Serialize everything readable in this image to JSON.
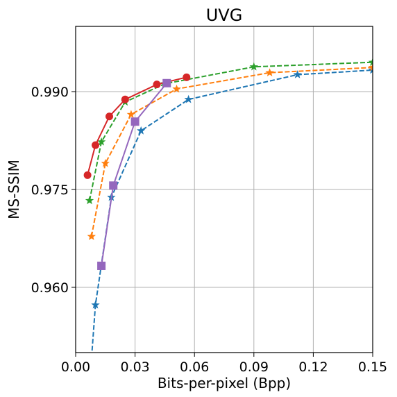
{
  "chart_data": {
    "type": "line",
    "title": "UVG",
    "xlabel": "Bits-per-pixel (Bpp)",
    "ylabel": "MS-SSIM",
    "xlim": [
      0.0,
      0.15
    ],
    "ylim": [
      0.95,
      1.0
    ],
    "xticks": [
      0.0,
      0.03,
      0.06,
      0.09,
      0.12,
      0.15
    ],
    "xtick_labels": [
      "0.00",
      "0.03",
      "0.06",
      "0.09",
      "0.12",
      "0.15"
    ],
    "yticks": [
      0.96,
      0.975,
      0.99
    ],
    "ytick_labels": [
      "0.960",
      "0.975",
      "0.990"
    ],
    "grid": true,
    "series": [
      {
        "color": "#1f77b4",
        "linestyle": "dashed",
        "marker": "star",
        "x": [
          0.007,
          0.01,
          0.018,
          0.033,
          0.057,
          0.112,
          0.15
        ],
        "y": [
          0.945,
          0.9573,
          0.9738,
          0.984,
          0.9888,
          0.9926,
          0.9933
        ]
      },
      {
        "color": "#ff7f0e",
        "linestyle": "dashed",
        "marker": "star",
        "x": [
          0.008,
          0.015,
          0.028,
          0.051,
          0.098,
          0.15
        ],
        "y": [
          0.9678,
          0.979,
          0.9865,
          0.9904,
          0.9929,
          0.9937
        ]
      },
      {
        "color": "#2ca02c",
        "linestyle": "dashed",
        "marker": "star",
        "x": [
          0.007,
          0.013,
          0.025,
          0.045,
          0.09,
          0.15
        ],
        "y": [
          0.9733,
          0.9823,
          0.9884,
          0.9912,
          0.9938,
          0.9945
        ]
      },
      {
        "color": "#d62728",
        "linestyle": "solid",
        "marker": "circle",
        "x": [
          0.006,
          0.01,
          0.017,
          0.025,
          0.041,
          0.056
        ],
        "y": [
          0.9772,
          0.9818,
          0.9862,
          0.9888,
          0.9911,
          0.9922
        ]
      },
      {
        "color": "#9467bd",
        "linestyle": "solid",
        "marker": "square",
        "x": [
          0.013,
          0.019,
          0.03,
          0.046
        ],
        "y": [
          0.9633,
          0.9756,
          0.9854,
          0.9913
        ]
      }
    ]
  }
}
